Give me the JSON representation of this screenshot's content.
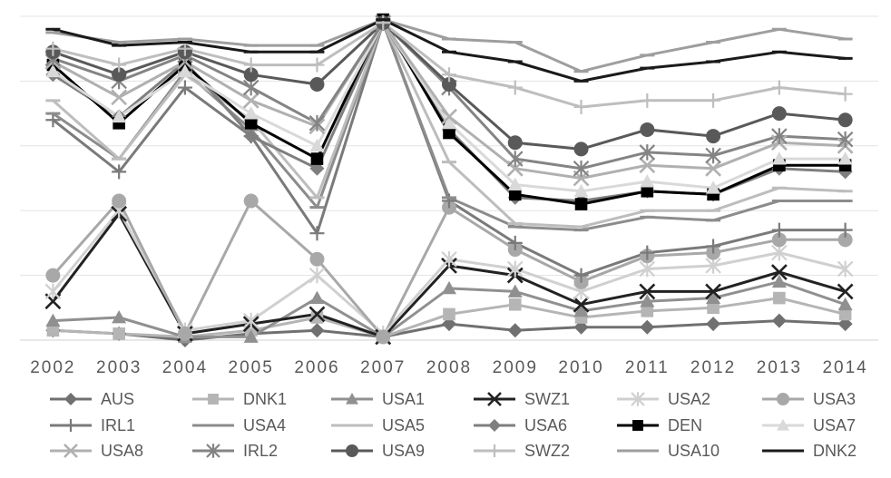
{
  "chart_data": {
    "type": "line",
    "title": "",
    "xlabel": "",
    "ylabel": "",
    "x": [
      "2002",
      "2003",
      "2004",
      "2005",
      "2006",
      "2007",
      "2008",
      "2009",
      "2010",
      "2011",
      "2012",
      "2013",
      "2014"
    ],
    "ylim": [
      0,
      10
    ],
    "grid": true,
    "legend_placement": "bottom",
    "series": [
      {
        "name": "AUS",
        "marker": "diamond",
        "color": "#707070",
        "values": [
          0.3,
          0.2,
          0.0,
          0.2,
          0.3,
          0.1,
          0.5,
          0.3,
          0.4,
          0.4,
          0.5,
          0.6,
          0.5
        ]
      },
      {
        "name": "DNK1",
        "marker": "square",
        "color": "#b5b5b5",
        "values": [
          0.3,
          0.2,
          0.1,
          0.3,
          0.7,
          0.1,
          0.8,
          1.1,
          0.7,
          0.9,
          1.0,
          1.3,
          0.8
        ]
      },
      {
        "name": "USA1",
        "marker": "triangle",
        "color": "#909090",
        "values": [
          0.6,
          0.7,
          0.1,
          0.1,
          1.3,
          0.1,
          1.6,
          1.5,
          0.9,
          1.2,
          1.3,
          1.8,
          1.1
        ]
      },
      {
        "name": "SWZ1",
        "marker": "x",
        "color": "#222222",
        "values": [
          1.2,
          3.9,
          0.2,
          0.5,
          0.8,
          0.1,
          2.3,
          2.0,
          1.1,
          1.5,
          1.5,
          2.1,
          1.5
        ]
      },
      {
        "name": "USA2",
        "marker": "star",
        "color": "#d0d0d0",
        "values": [
          1.5,
          4.0,
          0.3,
          0.6,
          2.0,
          0.2,
          2.5,
          2.2,
          1.5,
          2.2,
          2.3,
          2.7,
          2.2
        ]
      },
      {
        "name": "USA3",
        "marker": "circle",
        "color": "#a8a8a8",
        "values": [
          2.0,
          4.3,
          0.2,
          4.3,
          2.5,
          0.1,
          4.1,
          2.8,
          1.8,
          2.6,
          2.7,
          3.1,
          3.1
        ]
      },
      {
        "name": "IRL1",
        "marker": "plus",
        "color": "#7a7a7a",
        "values": [
          6.8,
          5.2,
          7.8,
          6.3,
          3.3,
          9.8,
          4.3,
          3.0,
          2.0,
          2.7,
          2.9,
          3.4,
          3.4
        ]
      },
      {
        "name": "USA4",
        "marker": "dash",
        "color": "#8c8c8c",
        "values": [
          7.0,
          5.6,
          8.3,
          6.5,
          4.1,
          9.8,
          4.4,
          3.5,
          3.4,
          3.8,
          3.7,
          4.3,
          4.3
        ]
      },
      {
        "name": "USA5",
        "marker": "dash",
        "color": "#bdbdbd",
        "values": [
          7.4,
          5.6,
          8.2,
          6.8,
          4.4,
          9.8,
          5.5,
          3.6,
          3.5,
          4.0,
          4.0,
          4.7,
          4.6
        ]
      },
      {
        "name": "USA6",
        "marker": "diamond",
        "color": "#7f7f7f",
        "values": [
          8.2,
          6.9,
          8.6,
          6.3,
          5.3,
          9.8,
          6.5,
          4.4,
          4.3,
          4.6,
          4.5,
          5.3,
          5.2
        ]
      },
      {
        "name": "DEN",
        "marker": "square",
        "color": "#000000",
        "values": [
          8.5,
          6.7,
          8.5,
          6.7,
          5.6,
          9.9,
          6.4,
          4.5,
          4.2,
          4.6,
          4.5,
          5.4,
          5.4
        ]
      },
      {
        "name": "USA7",
        "marker": "triangle",
        "color": "#d9d9d9",
        "values": [
          8.3,
          6.9,
          8.3,
          7.0,
          6.0,
          9.8,
          6.7,
          4.8,
          4.6,
          4.9,
          4.7,
          5.6,
          5.6
        ]
      },
      {
        "name": "USA8",
        "marker": "x",
        "color": "#b0b0b0",
        "values": [
          8.6,
          7.5,
          8.6,
          7.4,
          6.6,
          9.8,
          6.9,
          5.3,
          5.0,
          5.4,
          5.3,
          6.1,
          6.0
        ]
      },
      {
        "name": "IRL2",
        "marker": "star",
        "color": "#848484",
        "values": [
          8.7,
          8.0,
          8.8,
          7.8,
          6.7,
          9.8,
          7.8,
          5.6,
          5.3,
          5.8,
          5.7,
          6.3,
          6.2
        ]
      },
      {
        "name": "USA9",
        "marker": "circle",
        "color": "#595959",
        "values": [
          8.9,
          8.2,
          8.9,
          8.2,
          7.9,
          9.8,
          7.9,
          6.1,
          5.9,
          6.5,
          6.3,
          7.0,
          6.8
        ]
      },
      {
        "name": "SWZ2",
        "marker": "plus",
        "color": "#bebebe",
        "values": [
          9.0,
          8.5,
          9.0,
          8.5,
          8.5,
          9.8,
          8.2,
          7.8,
          7.2,
          7.4,
          7.4,
          7.8,
          7.6
        ]
      },
      {
        "name": "USA10",
        "marker": "dash",
        "color": "#9e9e9e",
        "values": [
          9.5,
          9.2,
          9.3,
          9.1,
          9.1,
          9.9,
          9.3,
          9.2,
          8.3,
          8.8,
          9.2,
          9.6,
          9.3
        ]
      },
      {
        "name": "DNK2",
        "marker": "dash",
        "color": "#1a1a1a",
        "values": [
          9.6,
          9.1,
          9.2,
          8.9,
          8.9,
          9.9,
          8.9,
          8.6,
          8.0,
          8.4,
          8.6,
          8.9,
          8.7
        ]
      }
    ]
  }
}
